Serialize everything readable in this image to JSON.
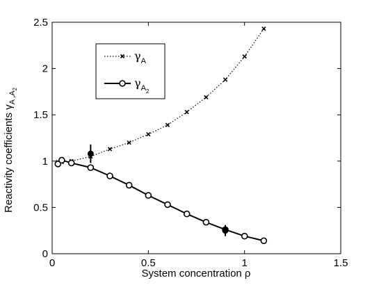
{
  "chart_data": {
    "type": "line",
    "title": "",
    "xlabel": "System concentration ρ",
    "ylabel_main": "Reactivity  coefficients  γ",
    "ylabel_subscript": "A ,A",
    "ylabel_subsub": "2",
    "xlim": [
      0,
      1.5
    ],
    "ylim": [
      0,
      2.5
    ],
    "xticks": [
      {
        "value": 0,
        "label": "0"
      },
      {
        "value": 0.5,
        "label": "0.5"
      },
      {
        "value": 1,
        "label": "1"
      },
      {
        "value": 1.5,
        "label": "1.5"
      }
    ],
    "yticks": [
      {
        "value": 0,
        "label": "0"
      },
      {
        "value": 0.5,
        "label": "0.5"
      },
      {
        "value": 1,
        "label": "1"
      },
      {
        "value": 1.5,
        "label": "1.5"
      },
      {
        "value": 2,
        "label": "2"
      },
      {
        "value": 2.5,
        "label": "2.5"
      }
    ],
    "grid": false,
    "legend_position": "top-left",
    "series": [
      {
        "legend_symbol": "γ",
        "legend_sub": "A",
        "legend_subsub": "",
        "style": "dotted",
        "marker": "x",
        "color": "#000000",
        "x": [
          0.03,
          0.05,
          0.1,
          0.2,
          0.3,
          0.4,
          0.5,
          0.6,
          0.7,
          0.8,
          0.9,
          1.0,
          1.1
        ],
        "y": [
          0.99,
          0.99,
          1.0,
          1.05,
          1.13,
          1.2,
          1.29,
          1.39,
          1.53,
          1.69,
          1.88,
          2.13,
          2.43
        ]
      },
      {
        "legend_symbol": "γ",
        "legend_sub": "A",
        "legend_subsub": "2",
        "style": "solid",
        "marker": "o",
        "color": "#000000",
        "x": [
          0.03,
          0.05,
          0.1,
          0.2,
          0.3,
          0.4,
          0.5,
          0.6,
          0.7,
          0.8,
          0.9,
          1.0,
          1.1
        ],
        "y": [
          0.97,
          1.01,
          0.98,
          0.93,
          0.84,
          0.74,
          0.63,
          0.53,
          0.43,
          0.34,
          0.26,
          0.19,
          0.14
        ]
      }
    ],
    "error_points": [
      {
        "x": 0.2,
        "y": 1.08,
        "err": 0.1,
        "marker": "filled-circle"
      },
      {
        "x": 0.9,
        "y": 0.25,
        "err": 0.06,
        "marker": "filled-circle"
      }
    ]
  }
}
